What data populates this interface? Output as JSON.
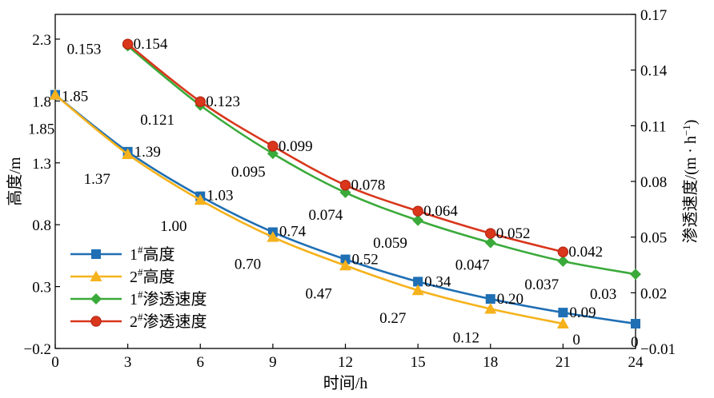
{
  "chart_data": {
    "type": "line",
    "xlabel": "时间/h",
    "ylabel_left": "高度/m",
    "ylabel_right_main": "渗透速度/(m · h",
    "ylabel_right_sup": "−1",
    "ylabel_right_tail": ")",
    "xlim": [
      0,
      24
    ],
    "ylim_left": [
      -0.2,
      2.5
    ],
    "ylim_right": [
      -0.01,
      0.17
    ],
    "x_ticks": [
      0,
      3,
      6,
      9,
      12,
      15,
      18,
      21,
      24
    ],
    "x_tick_labels": [
      "0",
      "3",
      "6",
      "9",
      "12",
      "15",
      "18",
      "21",
      "24"
    ],
    "y_left_ticks": [
      -0.2,
      0.3,
      0.8,
      1.3,
      1.8,
      2.3
    ],
    "y_left_tick_labels": [
      "−0.2",
      "0.3",
      "0.8",
      "1.3",
      "1.8",
      "2.3"
    ],
    "y_right_ticks": [
      -0.01,
      0.02,
      0.05,
      0.08,
      0.11,
      0.14,
      0.17
    ],
    "y_right_tick_labels": [
      "−0.01",
      "0.02",
      "0.05",
      "0.08",
      "0.11",
      "0.14",
      "0.17"
    ],
    "legend_position": "bottom-left",
    "series": [
      {
        "name": "1#高度",
        "legend_main": "1",
        "legend_sup": "#",
        "legend_tail": "高度",
        "axis": "left",
        "color": "#1f6fb4",
        "marker": "square",
        "x": [
          0,
          3,
          6,
          9,
          12,
          15,
          18,
          21,
          24
        ],
        "values": [
          1.85,
          1.39,
          1.03,
          0.74,
          0.52,
          0.34,
          0.2,
          0.09,
          0.0
        ],
        "labels": [
          {
            "x": 0,
            "text": "1.85"
          },
          {
            "x": 3,
            "text": "1.39"
          },
          {
            "x": 6,
            "text": "1.03"
          },
          {
            "x": 9,
            "text": "0.74"
          },
          {
            "x": 12,
            "text": "0.52"
          },
          {
            "x": 15,
            "text": "0.34"
          },
          {
            "x": 18,
            "text": "0.20"
          },
          {
            "x": 21,
            "text": "0.09"
          },
          {
            "x": 24,
            "text": "0"
          }
        ]
      },
      {
        "name": "2#高度",
        "legend_main": "2",
        "legend_sup": "#",
        "legend_tail": "高度",
        "axis": "left",
        "color": "#f5b21c",
        "marker": "triangle",
        "x": [
          0,
          3,
          6,
          9,
          12,
          15,
          18,
          21
        ],
        "values": [
          1.85,
          1.37,
          1.0,
          0.7,
          0.47,
          0.27,
          0.12,
          0.0
        ],
        "labels": [
          {
            "x": 0,
            "text": "1.85"
          },
          {
            "x": 3,
            "text": "1.37"
          },
          {
            "x": 6,
            "text": "1.00"
          },
          {
            "x": 9,
            "text": "0.70"
          },
          {
            "x": 12,
            "text": "0.47"
          },
          {
            "x": 15,
            "text": "0.27"
          },
          {
            "x": 18,
            "text": "0.12"
          },
          {
            "x": 21,
            "text": "0"
          }
        ]
      },
      {
        "name": "1#渗透速度",
        "legend_main": "1",
        "legend_sup": "#",
        "legend_tail": "渗透速度",
        "axis": "right",
        "color": "#3aaa3a",
        "marker": "diamond",
        "x": [
          3,
          6,
          9,
          12,
          15,
          18,
          21,
          24
        ],
        "values": [
          0.153,
          0.121,
          0.095,
          0.074,
          0.059,
          0.047,
          0.037,
          0.03
        ],
        "labels": [
          {
            "x": 3,
            "text": "0.153"
          },
          {
            "x": 6,
            "text": "0.121"
          },
          {
            "x": 9,
            "text": "0.095"
          },
          {
            "x": 12,
            "text": "0.074"
          },
          {
            "x": 15,
            "text": "0.059"
          },
          {
            "x": 18,
            "text": "0.047"
          },
          {
            "x": 21,
            "text": "0.037"
          },
          {
            "x": 24,
            "text": "0.03"
          }
        ]
      },
      {
        "name": "2#渗透速度",
        "legend_main": "2",
        "legend_sup": "#",
        "legend_tail": "渗透速度",
        "axis": "right",
        "color": "#d9361c",
        "marker": "circle",
        "x": [
          3,
          6,
          9,
          12,
          15,
          18,
          21
        ],
        "values": [
          0.154,
          0.123,
          0.099,
          0.078,
          0.064,
          0.052,
          0.042
        ],
        "labels": [
          {
            "x": 3,
            "text": "0.154"
          },
          {
            "x": 6,
            "text": "0.123"
          },
          {
            "x": 9,
            "text": "0.099"
          },
          {
            "x": 12,
            "text": "0.078"
          },
          {
            "x": 15,
            "text": "0.064"
          },
          {
            "x": 18,
            "text": "0.052"
          },
          {
            "x": 21,
            "text": "0.042"
          }
        ]
      }
    ]
  }
}
